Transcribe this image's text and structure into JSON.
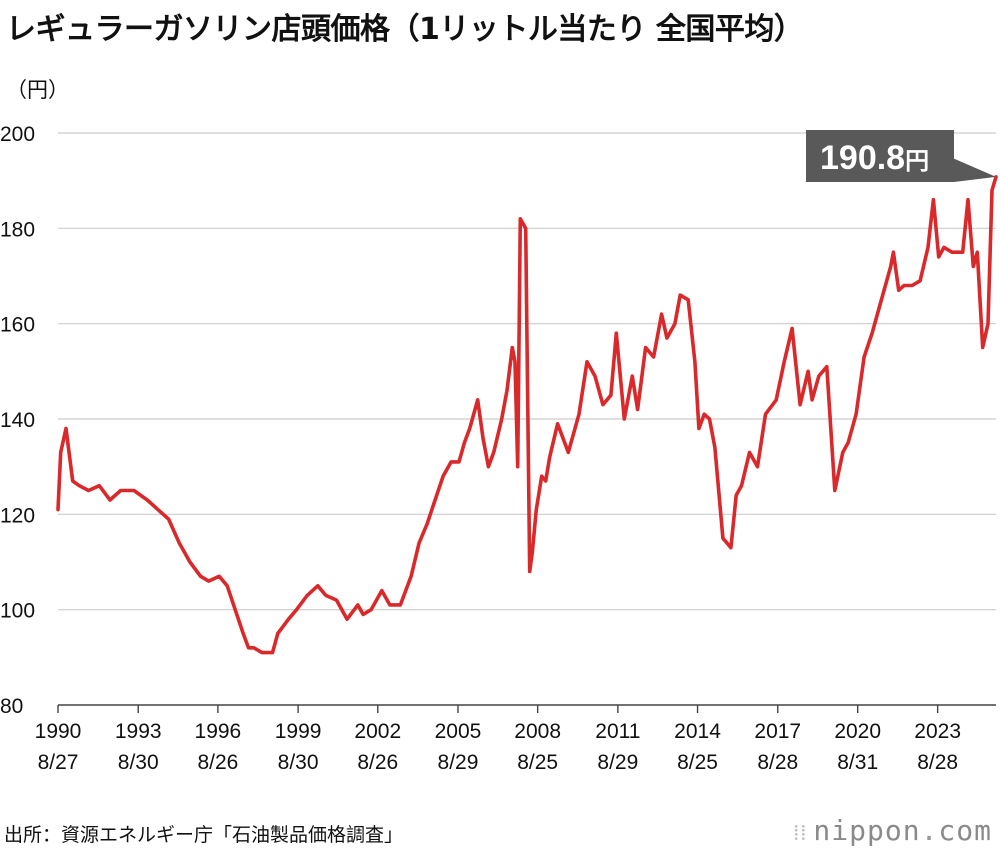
{
  "title": "レギュラーガソリン店頭価格（1リットル当たり 全国平均）",
  "unit_label": "（円）",
  "source": "出所：資源エネルギー庁「石油製品価格調査」",
  "brand": {
    "name": "nippon",
    "dot": ".",
    "tld": "com"
  },
  "colors": {
    "line": "#d9292b",
    "grid": "#cccccc",
    "axis": "#444444",
    "callout_bg": "#595959",
    "callout_text": "#ffffff"
  },
  "callout": {
    "value": "190.8",
    "unit": "円"
  },
  "chart_data": {
    "type": "line",
    "ylim": [
      80,
      200
    ],
    "yticks": [
      80,
      100,
      120,
      140,
      160,
      180,
      200
    ],
    "xlim": [
      1990.65,
      2025.85
    ],
    "xticks": [
      {
        "x": 1990.65,
        "year": "1990",
        "date": "8/27"
      },
      {
        "x": 1993.66,
        "year": "1993",
        "date": "8/30"
      },
      {
        "x": 1996.65,
        "year": "1996",
        "date": "8/26"
      },
      {
        "x": 1999.66,
        "year": "1999",
        "date": "8/30"
      },
      {
        "x": 2002.65,
        "year": "2002",
        "date": "8/26"
      },
      {
        "x": 2005.66,
        "year": "2005",
        "date": "8/29"
      },
      {
        "x": 2008.65,
        "year": "2008",
        "date": "8/25"
      },
      {
        "x": 2011.66,
        "year": "2011",
        "date": "8/29"
      },
      {
        "x": 2014.65,
        "year": "2014",
        "date": "8/25"
      },
      {
        "x": 2017.66,
        "year": "2017",
        "date": "8/28"
      },
      {
        "x": 2020.66,
        "year": "2020",
        "date": "8/31"
      },
      {
        "x": 2023.66,
        "year": "2023",
        "date": "8/28"
      }
    ],
    "grid": true,
    "series": [
      {
        "x": [
          1990.65,
          1990.75,
          1990.95,
          1991.2,
          1991.45,
          1991.8,
          1992.2,
          1992.6,
          1993.0,
          1993.5,
          1994.0,
          1994.4,
          1994.8,
          1995.2,
          1995.6,
          1996.0,
          1996.3,
          1996.7,
          1997.0,
          1997.3,
          1997.6,
          1997.8,
          1998.0,
          1998.3,
          1998.7,
          1998.9,
          1999.3,
          1999.6,
          2000.0,
          2000.4,
          2000.7,
          2001.1,
          2001.5,
          2001.9,
          2002.1,
          2002.4,
          2002.8,
          2003.1,
          2003.5,
          2003.9,
          2004.2,
          2004.5,
          2004.8,
          2005.1,
          2005.4,
          2005.7,
          2005.9,
          2006.1,
          2006.4,
          2006.6,
          2006.8,
          2007.0,
          2007.3,
          2007.5,
          2007.7,
          2007.8,
          2007.9,
          2008.0,
          2008.2,
          2008.35,
          2008.45,
          2008.6,
          2008.8,
          2008.95,
          2009.1,
          2009.4,
          2009.8,
          2010.2,
          2010.5,
          2010.8,
          2011.1,
          2011.4,
          2011.6,
          2011.9,
          2012.2,
          2012.4,
          2012.7,
          2013.0,
          2013.3,
          2013.5,
          2013.8,
          2014.0,
          2014.3,
          2014.55,
          2014.7,
          2014.9,
          2015.1,
          2015.3,
          2015.6,
          2015.9,
          2016.1,
          2016.3,
          2016.6,
          2016.9,
          2017.2,
          2017.6,
          2017.9,
          2018.2,
          2018.5,
          2018.8,
          2018.95,
          2019.2,
          2019.5,
          2019.8,
          2020.1,
          2020.3,
          2020.6,
          2020.9,
          2021.2,
          2021.4,
          2021.7,
          2021.9,
          2022.0,
          2022.2,
          2022.4,
          2022.7,
          2023.0,
          2023.3,
          2023.5,
          2023.7,
          2023.9,
          2024.2,
          2024.6,
          2024.8,
          2025.0,
          2025.15,
          2025.35,
          2025.55,
          2025.7,
          2025.85
        ],
        "values": [
          121,
          133,
          138,
          127,
          126,
          125,
          126,
          123,
          125,
          125,
          123,
          121,
          119,
          114,
          110,
          107,
          106,
          107,
          105,
          100,
          95,
          92,
          92,
          91,
          91,
          95,
          98,
          100,
          103,
          105,
          103,
          102,
          98,
          101,
          99,
          100,
          104,
          101,
          101,
          107,
          114,
          118,
          123,
          128,
          131,
          131,
          135,
          138,
          144,
          136,
          130,
          133,
          140,
          146,
          155,
          152,
          130,
          182,
          180,
          108,
          112,
          121,
          128,
          127,
          132,
          139,
          133,
          141,
          152,
          149,
          143,
          145,
          158,
          140,
          149,
          142,
          155,
          153,
          162,
          157,
          160,
          166,
          165,
          152,
          138,
          141,
          140,
          134,
          115,
          113,
          124,
          126,
          133,
          130,
          141,
          144,
          152,
          159,
          143,
          150,
          144,
          149,
          151,
          125,
          133,
          135,
          141,
          153,
          158,
          162,
          168,
          172,
          175,
          167,
          168,
          168,
          169,
          176,
          186,
          174,
          176,
          175,
          175,
          186,
          172,
          175,
          155,
          160,
          188,
          190.8
        ]
      }
    ]
  }
}
